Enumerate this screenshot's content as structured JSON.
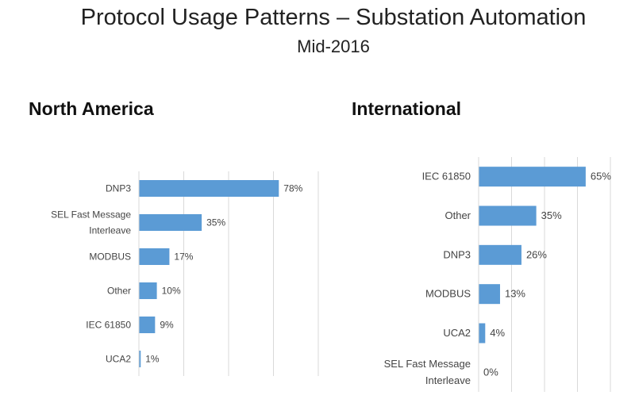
{
  "header": {
    "title": "Protocol Usage Patterns – Substation Automation",
    "subtitle": "Mid-2016"
  },
  "colors": {
    "bar": "#5b9bd5",
    "grid": "#d9d9d9",
    "label": "#444444"
  },
  "chart_data": [
    {
      "type": "bar",
      "orientation": "horizontal",
      "title": "North America",
      "categories": [
        "DNP3",
        "SEL Fast Message Interleave",
        "MODBUS",
        "Other",
        "IEC 61850",
        "UCA2"
      ],
      "category_label_lines": [
        [
          "DNP3"
        ],
        [
          "SEL Fast Message",
          "Interleave"
        ],
        [
          "MODBUS"
        ],
        [
          "Other"
        ],
        [
          "IEC 61850"
        ],
        [
          "UCA2"
        ]
      ],
      "values": [
        78,
        35,
        17,
        10,
        9,
        1
      ],
      "data_labels": [
        "78%",
        "35%",
        "17%",
        "10%",
        "9%",
        "1%"
      ],
      "unit": "%",
      "xlim": [
        0,
        100
      ],
      "grid": "vertical"
    },
    {
      "type": "bar",
      "orientation": "horizontal",
      "title": "International",
      "categories": [
        "IEC 61850",
        "Other",
        "DNP3",
        "MODBUS",
        "UCA2",
        "SEL Fast Message Interleave"
      ],
      "category_label_lines": [
        [
          "IEC 61850"
        ],
        [
          "Other"
        ],
        [
          "DNP3"
        ],
        [
          "MODBUS"
        ],
        [
          "UCA2"
        ],
        [
          "SEL Fast Message",
          "Interleave"
        ]
      ],
      "values": [
        65,
        35,
        26,
        13,
        4,
        0
      ],
      "data_labels": [
        "65%",
        "35%",
        "26%",
        "13%",
        "4%",
        "0%"
      ],
      "unit": "%",
      "xlim": [
        0,
        80
      ],
      "grid": "vertical"
    }
  ]
}
